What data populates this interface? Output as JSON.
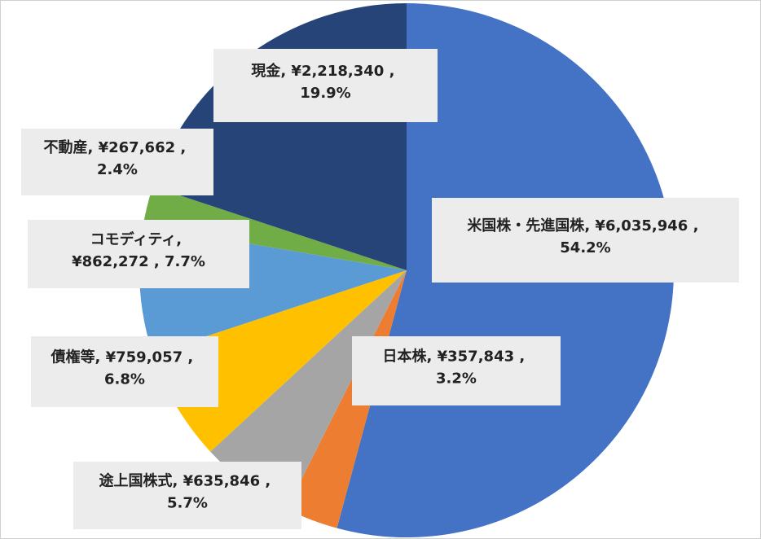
{
  "chart_data": {
    "type": "pie",
    "categories": [
      "米国株・先進国株",
      "日本株",
      "途上国株式",
      "債権等",
      "コモディティ",
      "不動産",
      "現金"
    ],
    "values": [
      6035946,
      357843,
      635846,
      759057,
      862272,
      267662,
      2218340
    ],
    "value_labels": [
      "¥6,035,946",
      "¥357,843",
      "¥635,846",
      "¥759,057",
      "¥862,272",
      "¥267,662",
      "¥2,218,340"
    ],
    "percents": [
      54.2,
      3.2,
      5.7,
      6.8,
      7.7,
      2.4,
      19.9
    ],
    "percent_labels": [
      "54.2%",
      "3.2%",
      "5.7%",
      "6.8%",
      "7.7%",
      "2.4%",
      "19.9%"
    ],
    "label_separators": [
      ", ",
      " , "
    ],
    "colors": [
      "#4472c4",
      "#ed7d31",
      "#a5a5a5",
      "#ffc000",
      "#5b9bd5",
      "#70ad47",
      "#264478"
    ]
  }
}
